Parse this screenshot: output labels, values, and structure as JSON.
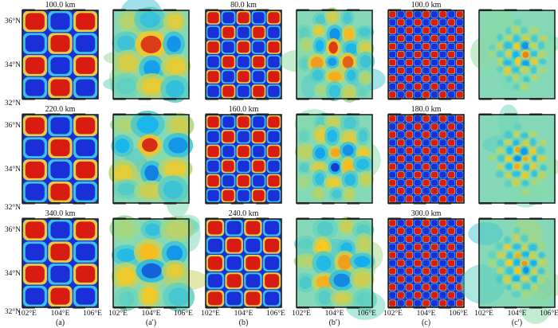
{
  "latitude_labels": [
    "36°N",
    "34°N",
    "32°N"
  ],
  "longitude_labels": [
    "102°E",
    "104°E",
    "106°E"
  ],
  "columns": [
    {
      "label": "(a)",
      "type": "checkerboard",
      "titles": [
        "100.0 km",
        "220.0 km",
        "340.0 km"
      ]
    },
    {
      "label": "(a′)",
      "type": "recovered",
      "titles": [
        "",
        "",
        ""
      ]
    },
    {
      "label": "(b)",
      "type": "checkerboard",
      "titles": [
        "80.0 km",
        "160.0 km",
        "240.0 km"
      ]
    },
    {
      "label": "(b′)",
      "type": "recovered",
      "titles": [
        "",
        "",
        ""
      ]
    },
    {
      "label": "(c)",
      "type": "checkerboard",
      "titles": [
        "100.0 km",
        "180.0 km",
        "300.0 km"
      ]
    },
    {
      "label": "(c′)",
      "type": "recovered",
      "titles": [
        "",
        "",
        ""
      ]
    }
  ],
  "colors": {
    "positive": "#d81c12",
    "negative": "#1a2fd8",
    "neutral": "#7fd6c4",
    "frame": "#222222"
  }
}
